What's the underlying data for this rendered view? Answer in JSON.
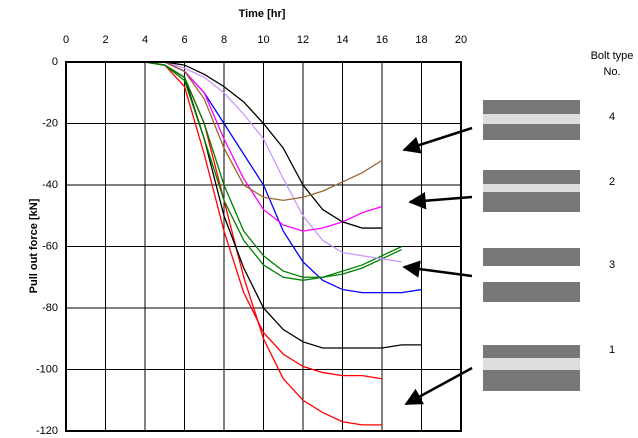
{
  "chart_data": {
    "type": "line",
    "x_label": "Time [hr]",
    "y_label": "Pull out force [kN]",
    "x": [
      0,
      1,
      2,
      3,
      4,
      5,
      6,
      7,
      8,
      9,
      10,
      11,
      12,
      13,
      14,
      15,
      16,
      17,
      18
    ],
    "xlim": [
      0,
      20
    ],
    "xticks": [
      0,
      2,
      4,
      6,
      8,
      10,
      12,
      14,
      16,
      18,
      20
    ],
    "ylim": [
      -120,
      0
    ],
    "yticks": [
      0,
      -20,
      -40,
      -60,
      -80,
      -100,
      -120
    ],
    "grid": true,
    "series": [
      {
        "color": "#ff0000",
        "values": [
          0,
          0,
          0,
          0,
          0,
          -1,
          -5,
          -20,
          -45,
          -70,
          -90,
          -103,
          -110,
          -114,
          -117,
          -118,
          -118,
          null,
          null
        ]
      },
      {
        "color": "#ff0000",
        "values": [
          0,
          0,
          0,
          0,
          0,
          -1,
          -8,
          -30,
          -55,
          -75,
          -88,
          -95,
          -99,
          -101,
          -102,
          -102,
          -103,
          null,
          null
        ]
      },
      {
        "color": "#000000",
        "values": [
          0,
          0,
          0,
          0,
          0,
          -1,
          -5,
          -25,
          -50,
          -67,
          -80,
          -87,
          -91,
          -93,
          -93,
          -93,
          -93,
          -92,
          -92
        ]
      },
      {
        "color": "#0000ff",
        "values": [
          0,
          0,
          0,
          0,
          0,
          0,
          -3,
          -10,
          -20,
          -30,
          -40,
          -55,
          -65,
          -71,
          -74,
          -75,
          -75,
          -75,
          -74
        ]
      },
      {
        "color": "#008000",
        "values": [
          0,
          0,
          0,
          0,
          0,
          -1,
          -5,
          -20,
          -40,
          -55,
          -63,
          -68,
          -70,
          -70,
          -69,
          -67,
          -64,
          -61,
          null
        ]
      },
      {
        "color": "#008000",
        "values": [
          0,
          0,
          0,
          0,
          0,
          -1,
          -6,
          -25,
          -45,
          -58,
          -66,
          -70,
          -71,
          -70,
          -68,
          -66,
          -63,
          -60,
          null
        ]
      },
      {
        "color": "#cc99ff",
        "values": [
          0,
          0,
          0,
          0,
          0,
          0,
          -2,
          -5,
          -10,
          -17,
          -25,
          -38,
          -50,
          -58,
          -62,
          -63,
          -64,
          -65,
          null
        ]
      },
      {
        "color": "#ff00ff",
        "values": [
          0,
          0,
          0,
          0,
          0,
          0,
          -3,
          -10,
          -25,
          -38,
          -48,
          -53,
          -55,
          -54,
          -52,
          -49,
          -47,
          null,
          null
        ]
      },
      {
        "color": "#000000",
        "values": [
          0,
          0,
          0,
          0,
          0,
          0,
          -1,
          -4,
          -8,
          -13,
          -20,
          -28,
          -40,
          -48,
          -52,
          -54,
          -54,
          null,
          null
        ]
      },
      {
        "color": "#996633",
        "values": [
          0,
          0,
          0,
          0,
          0,
          0,
          -3,
          -12,
          -28,
          -40,
          -44,
          -45,
          -44,
          -42,
          -39,
          -36,
          -32,
          null,
          null
        ]
      }
    ]
  },
  "bolt_legend": {
    "heading_1": "Bolt type",
    "heading_2": "No.",
    "labels": [
      "4",
      "2",
      "3",
      "1"
    ]
  }
}
